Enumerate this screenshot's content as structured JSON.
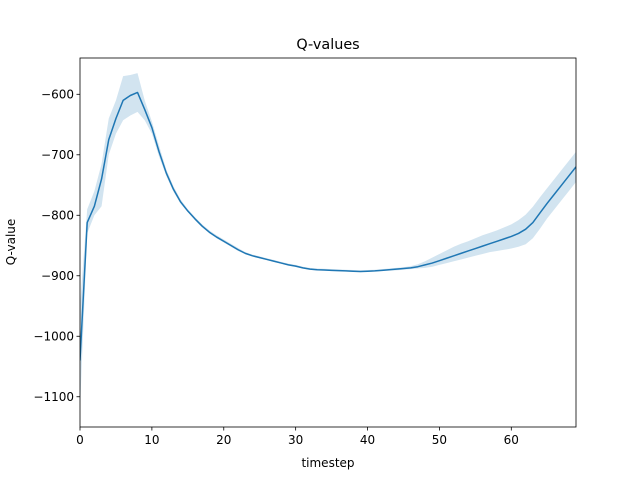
{
  "chart_data": {
    "type": "line",
    "title": "Q-values",
    "xlabel": "timestep",
    "ylabel": "Q-value",
    "xlim": [
      0,
      69
    ],
    "ylim": [
      -1150,
      -540
    ],
    "x_ticks": [
      0,
      10,
      20,
      30,
      40,
      50,
      60
    ],
    "y_ticks": [
      -1100,
      -1000,
      -900,
      -800,
      -700,
      -600
    ],
    "x_tick_labels": [
      "0",
      "10",
      "20",
      "30",
      "40",
      "50",
      "60"
    ],
    "y_tick_labels": [
      "−1100",
      "−1000",
      "−900",
      "−800",
      "−700",
      "−600"
    ],
    "grid": false,
    "line_color": "#1f77b4",
    "band_color": "#1f77b4",
    "series": [
      {
        "x": [
          0,
          1,
          2,
          3,
          4,
          5,
          6,
          7,
          8,
          9,
          10,
          11,
          12,
          13,
          14,
          15,
          16,
          17,
          18,
          19,
          20,
          21,
          22,
          23,
          24,
          25,
          26,
          27,
          28,
          29,
          30,
          31,
          32,
          33,
          34,
          35,
          36,
          37,
          38,
          39,
          40,
          41,
          42,
          43,
          44,
          45,
          46,
          47,
          48,
          49,
          50,
          51,
          52,
          53,
          54,
          55,
          56,
          57,
          58,
          59,
          60,
          61,
          62,
          63,
          64,
          65,
          66,
          67,
          68,
          69
        ],
        "values": [
          -1040,
          -812,
          -785,
          -740,
          -675,
          -640,
          -610,
          -602,
          -597,
          -625,
          -655,
          -695,
          -730,
          -757,
          -778,
          -793,
          -806,
          -818,
          -828,
          -836,
          -843,
          -850,
          -857,
          -863,
          -867,
          -870,
          -873,
          -876,
          -879,
          -882,
          -884,
          -887,
          -889,
          -890,
          -890.5,
          -891,
          -891.5,
          -892,
          -892.5,
          -893,
          -892.5,
          -892,
          -891,
          -890,
          -889,
          -888,
          -887,
          -885,
          -882,
          -879,
          -875,
          -871,
          -867,
          -863,
          -859,
          -855,
          -851,
          -847,
          -843,
          -839,
          -835,
          -830,
          -823,
          -812,
          -796,
          -780,
          -765,
          -750,
          -735,
          -720
        ],
        "lower": [
          -1120,
          -830,
          -800,
          -785,
          -700,
          -665,
          -643,
          -635,
          -629,
          -643,
          -665,
          -703,
          -735,
          -761,
          -781,
          -795,
          -808,
          -820,
          -830,
          -838,
          -845,
          -852,
          -859,
          -864,
          -868,
          -871,
          -874,
          -877,
          -880,
          -883,
          -885,
          -888,
          -890,
          -891,
          -891.5,
          -892,
          -892.5,
          -893,
          -893.5,
          -894,
          -893.5,
          -893,
          -892,
          -891.5,
          -891,
          -890,
          -889,
          -888,
          -887,
          -885,
          -882,
          -879,
          -876,
          -873,
          -870,
          -867,
          -864,
          -861,
          -859,
          -857,
          -855,
          -852,
          -848,
          -838,
          -822,
          -805,
          -790,
          -775,
          -760,
          -745
        ],
        "upper": [
          -950,
          -790,
          -760,
          -715,
          -640,
          -610,
          -570,
          -568,
          -565,
          -610,
          -645,
          -685,
          -724,
          -752,
          -774,
          -790,
          -803,
          -815,
          -825,
          -833,
          -840,
          -847,
          -854,
          -861,
          -865,
          -868,
          -871,
          -874,
          -877,
          -880,
          -882,
          -885,
          -887,
          -888,
          -888.5,
          -889,
          -889.5,
          -890,
          -890.5,
          -891,
          -890.5,
          -890,
          -889,
          -888,
          -887,
          -886,
          -884,
          -881,
          -876,
          -870,
          -864,
          -858,
          -852,
          -847,
          -843,
          -838,
          -833,
          -829,
          -825,
          -820,
          -815,
          -808,
          -799,
          -786,
          -770,
          -755,
          -740,
          -725,
          -710,
          -695
        ]
      }
    ]
  }
}
